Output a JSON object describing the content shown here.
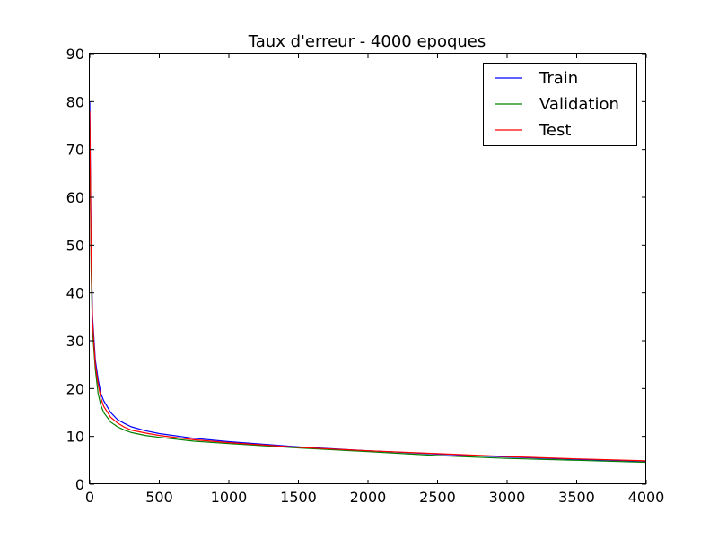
{
  "chart_data": {
    "type": "line",
    "title": "Taux d'erreur - 4000 epoques",
    "xlabel": "",
    "ylabel": "",
    "xlim": [
      0,
      4000
    ],
    "ylim": [
      0,
      90
    ],
    "xticks": [
      0,
      500,
      1000,
      1500,
      2000,
      2500,
      3000,
      3500,
      4000
    ],
    "yticks": [
      0,
      10,
      20,
      30,
      40,
      50,
      60,
      70,
      80,
      90
    ],
    "grid": false,
    "legend_position": "top-right",
    "series": [
      {
        "name": "Train",
        "color": "#0000ff",
        "x": [
          0,
          10,
          20,
          40,
          60,
          80,
          100,
          150,
          200,
          250,
          300,
          400,
          500,
          750,
          1000,
          1500,
          2000,
          2500,
          3000,
          3500,
          4000
        ],
        "y": [
          80,
          50,
          35,
          26,
          22,
          19,
          17.5,
          15,
          13.5,
          12.7,
          12,
          11.2,
          10.6,
          9.6,
          8.9,
          7.8,
          7,
          6.3,
          5.7,
          5.2,
          4.8
        ]
      },
      {
        "name": "Validation",
        "color": "#008000",
        "x": [
          0,
          10,
          20,
          40,
          60,
          80,
          100,
          150,
          200,
          250,
          300,
          400,
          500,
          750,
          1000,
          1500,
          2000,
          2500,
          3000,
          3500,
          4000
        ],
        "y": [
          75,
          45,
          32,
          24,
          19,
          16.5,
          15,
          13,
          12,
          11.3,
          10.8,
          10.2,
          9.8,
          9,
          8.5,
          7.6,
          6.8,
          6,
          5.4,
          5,
          4.6
        ]
      },
      {
        "name": "Test",
        "color": "#ff0000",
        "x": [
          0,
          10,
          20,
          40,
          60,
          80,
          100,
          150,
          200,
          250,
          300,
          400,
          500,
          750,
          1000,
          1500,
          2000,
          2500,
          3000,
          3500,
          4000
        ],
        "y": [
          78,
          48,
          34,
          25,
          21,
          18,
          16.3,
          14,
          12.8,
          11.9,
          11.3,
          10.7,
          10.2,
          9.3,
          8.7,
          7.7,
          7,
          6.4,
          5.8,
          5.3,
          4.9
        ]
      }
    ]
  }
}
